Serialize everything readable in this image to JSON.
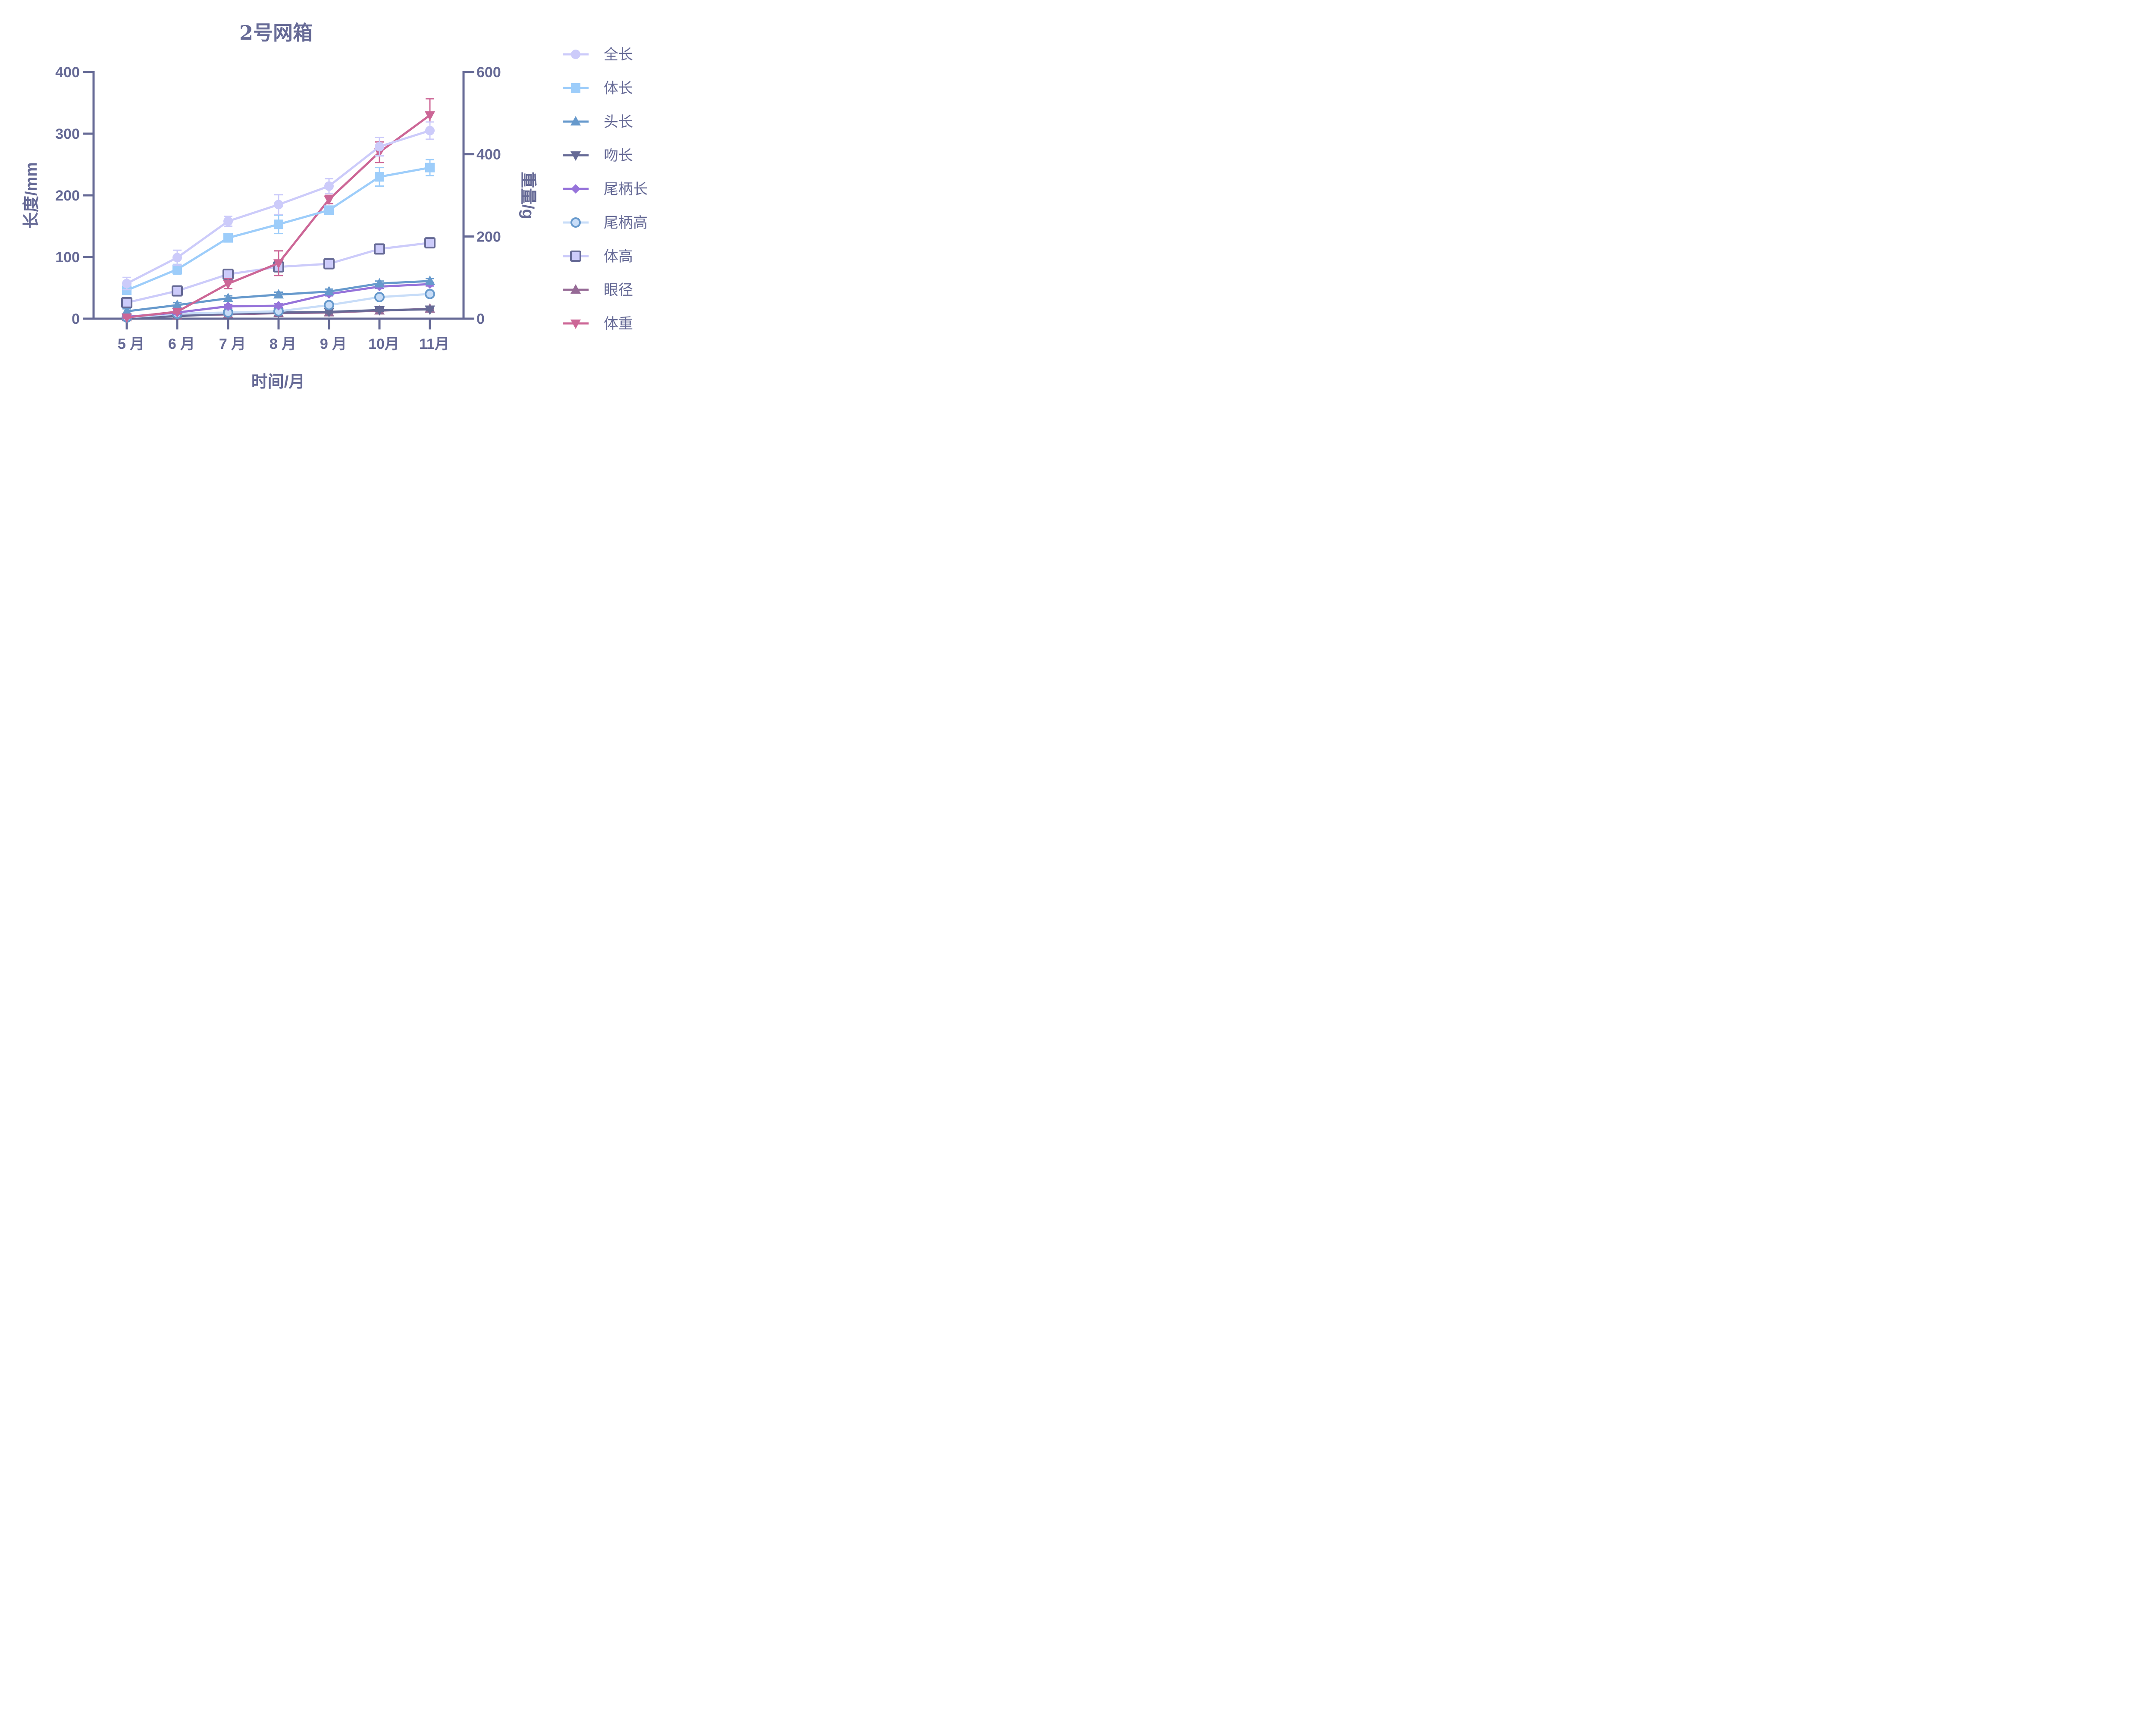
{
  "chart_data": {
    "type": "line",
    "title": "2号网箱",
    "xlabel": "时间/月",
    "ylabel": "长度/mm",
    "y2label": "重量/g",
    "categories": [
      "5 月",
      "6 月",
      "7 月",
      "8 月",
      "9 月",
      "10月",
      "11月"
    ],
    "ylim": [
      0,
      400
    ],
    "y_ticks": [
      0,
      100,
      200,
      300,
      400
    ],
    "y2lim": [
      0,
      600
    ],
    "y2_ticks": [
      0,
      200,
      400,
      600
    ],
    "grid": false,
    "legend_position": "right",
    "series": [
      {
        "name": "全长",
        "axis": "left",
        "marker": "circle",
        "color": "#cccbfa",
        "stroke": "#cccbfa",
        "values": [
          57,
          99,
          158,
          185,
          215,
          279,
          305
        ],
        "errors": [
          10,
          12,
          8,
          16,
          12,
          15,
          14
        ]
      },
      {
        "name": "体长",
        "axis": "left",
        "marker": "square",
        "color": "#9dcdfa",
        "stroke": "#9dcdfa",
        "values": [
          46,
          80,
          131,
          153,
          176,
          230,
          245
        ],
        "errors": [
          6,
          8,
          5,
          15,
          6,
          15,
          13
        ]
      },
      {
        "name": "头长",
        "axis": "left",
        "marker": "triangle-up",
        "color": "#6699cc",
        "stroke": "#6699cc",
        "values": [
          12,
          22,
          33,
          39,
          44,
          57,
          61
        ],
        "errors": [
          4,
          4,
          4,
          4,
          4,
          4,
          4
        ]
      },
      {
        "name": "吻长",
        "axis": "left",
        "marker": "triangle-down",
        "color": "#666a96",
        "stroke": "#666a96",
        "values": [
          2,
          4,
          8,
          10,
          11,
          14,
          15
        ],
        "errors": [
          2,
          2,
          2,
          2,
          2,
          2,
          2
        ]
      },
      {
        "name": "尾柄长",
        "axis": "left",
        "marker": "diamond",
        "color": "#9673da",
        "stroke": "#9673da",
        "values": [
          3,
          10,
          20,
          21,
          40,
          52,
          56
        ],
        "errors": [
          2,
          3,
          3,
          3,
          3,
          3,
          3
        ]
      },
      {
        "name": "尾柄高",
        "axis": "left",
        "marker": "ring",
        "color": "#c8ddf8",
        "stroke": "#6699cc",
        "values": [
          2,
          8,
          10,
          12,
          22,
          35,
          40
        ],
        "errors": [
          1,
          1,
          1,
          1,
          2,
          2,
          2
        ]
      },
      {
        "name": "体高",
        "axis": "left",
        "marker": "square-outline",
        "color": "#cccbfa",
        "stroke": "#666a96",
        "values": [
          26,
          45,
          72,
          84,
          89,
          113,
          123
        ],
        "errors": [
          3,
          3,
          3,
          3,
          3,
          3,
          3
        ]
      },
      {
        "name": "眼径",
        "axis": "left",
        "marker": "triangle-up",
        "color": "#966a96",
        "stroke": "#966a96",
        "values": [
          2,
          5,
          7,
          9,
          10,
          13,
          16
        ],
        "errors": [
          1,
          1,
          1,
          1,
          1,
          1,
          1
        ]
      },
      {
        "name": "体重",
        "axis": "right",
        "marker": "triangle-down",
        "color": "#cc6696",
        "stroke": "#cc6696",
        "values": [
          3,
          17,
          85,
          135,
          290,
          405,
          495
        ],
        "errors": [
          2,
          5,
          12,
          30,
          10,
          25,
          40
        ]
      }
    ]
  },
  "axes": {
    "left_title": "长度/mm",
    "right_title": "重量/g",
    "x_title": "时间/月"
  }
}
